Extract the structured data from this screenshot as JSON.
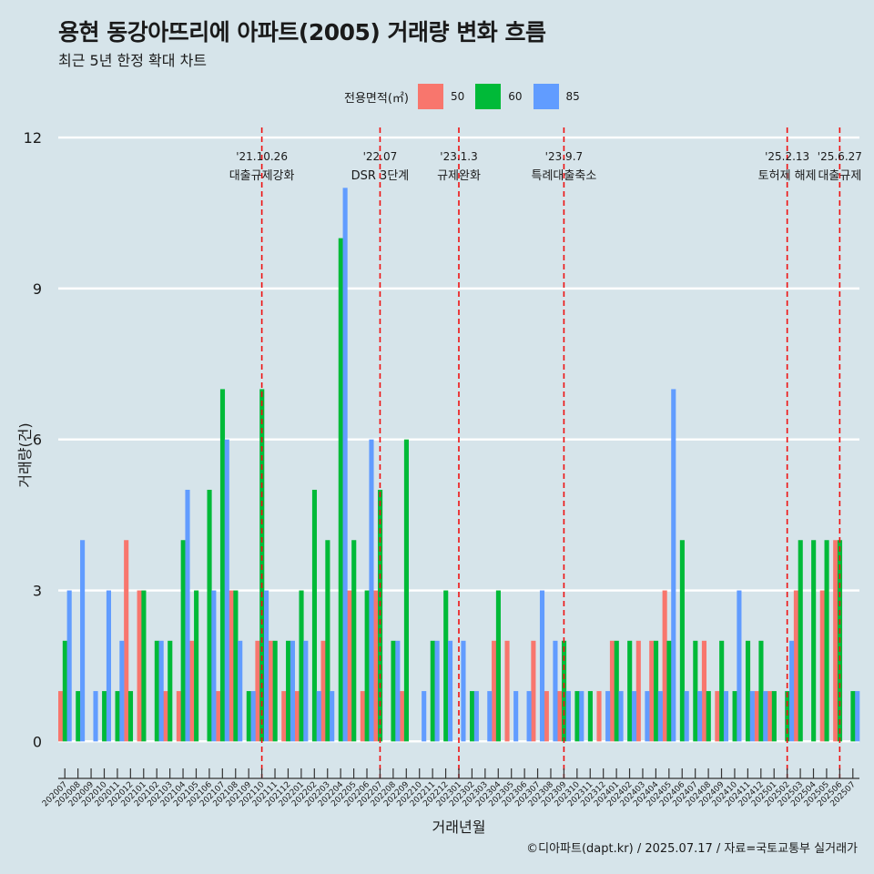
{
  "title": "용현 동강아뜨리에 아파트(2005) 거래량 변화 흐름",
  "subtitle": "최근 5년 한정 확대 차트",
  "caption": "©디아파트(dapt.kr) / 2025.07.17 / 자료=국토교통부 실거래가",
  "legend": {
    "title": "전용면적(㎡)",
    "items": [
      {
        "label": "50",
        "color": "#f8766d"
      },
      {
        "label": "60",
        "color": "#00ba38"
      },
      {
        "label": "85",
        "color": "#619cff"
      }
    ]
  },
  "chart_data": {
    "type": "bar",
    "title": "용현 동강아뜨리에 아파트(2005) 거래량 변화 흐름",
    "subtitle": "최근 5년 한정 확대 차트",
    "xlabel": "거래년월",
    "ylabel": "거래량(건)",
    "ylim": [
      -0.5,
      12.2
    ],
    "yticks": [
      0,
      3,
      6,
      9,
      12
    ],
    "grid": true,
    "legend_position": "top",
    "categories": [
      "202007",
      "202008",
      "202009",
      "202010",
      "202011",
      "202012",
      "202101",
      "202102",
      "202103",
      "202104",
      "202105",
      "202106",
      "202107",
      "202108",
      "202109",
      "202110",
      "202111",
      "202112",
      "202201",
      "202202",
      "202203",
      "202204",
      "202205",
      "202206",
      "202207",
      "202208",
      "202209",
      "202210",
      "202211",
      "202212",
      "202301",
      "202302",
      "202303",
      "202304",
      "202305",
      "202306",
      "202307",
      "202308",
      "202309",
      "202310",
      "202311",
      "202312",
      "202401",
      "202402",
      "202403",
      "202404",
      "202405",
      "202406",
      "202407",
      "202408",
      "202409",
      "202410",
      "202411",
      "202412",
      "202501",
      "202502",
      "202503",
      "202504",
      "202505",
      "202506",
      "202507"
    ],
    "series": [
      {
        "name": "50",
        "color": "#f8766d",
        "values": [
          1,
          0,
          0,
          0,
          0,
          4,
          3,
          0,
          1,
          1,
          2,
          0,
          1,
          3,
          0,
          2,
          2,
          1,
          1,
          0,
          2,
          0,
          3,
          1,
          3,
          0,
          1,
          0,
          0,
          0,
          0,
          0,
          0,
          2,
          2,
          0,
          2,
          1,
          1,
          0,
          0,
          1,
          2,
          0,
          2,
          2,
          3,
          0,
          0,
          2,
          1,
          0,
          0,
          1,
          1,
          0,
          3,
          0,
          3,
          4,
          0
        ]
      },
      {
        "name": "60",
        "color": "#00ba38",
        "values": [
          2,
          1,
          0,
          1,
          1,
          1,
          3,
          2,
          2,
          4,
          3,
          5,
          7,
          3,
          1,
          7,
          2,
          2,
          3,
          5,
          4,
          10,
          4,
          3,
          5,
          2,
          6,
          0,
          2,
          3,
          0,
          1,
          0,
          3,
          0,
          0,
          0,
          0,
          2,
          1,
          1,
          0,
          2,
          2,
          0,
          2,
          2,
          4,
          2,
          1,
          2,
          1,
          2,
          2,
          1,
          1,
          4,
          4,
          4,
          4,
          1
        ]
      },
      {
        "name": "85",
        "color": "#619cff",
        "values": [
          3,
          4,
          1,
          3,
          2,
          0,
          0,
          2,
          0,
          5,
          0,
          3,
          6,
          2,
          1,
          3,
          0,
          2,
          2,
          1,
          1,
          11,
          0,
          6,
          0,
          2,
          0,
          1,
          2,
          2,
          2,
          1,
          1,
          0,
          1,
          1,
          3,
          2,
          1,
          1,
          0,
          1,
          1,
          1,
          1,
          1,
          7,
          1,
          1,
          0,
          1,
          3,
          1,
          1,
          0,
          2,
          0,
          0,
          0,
          0,
          1
        ]
      }
    ],
    "events": [
      {
        "date": "'21.10.26",
        "label": "대출규제강화",
        "x_category": "202110"
      },
      {
        "date": "'22.07",
        "label": "DSR 3단계",
        "x_category": "202207"
      },
      {
        "date": "'23.1.3",
        "label": "규제완화",
        "x_category": "202301"
      },
      {
        "date": "'23.9.7",
        "label": "특례대출축소",
        "x_category": "202309"
      },
      {
        "date": "'25.2.13",
        "label": "토허제 해제",
        "x_category": "202502"
      },
      {
        "date": "'25.6.27",
        "label": "대출규제",
        "x_category": "202506"
      }
    ]
  }
}
